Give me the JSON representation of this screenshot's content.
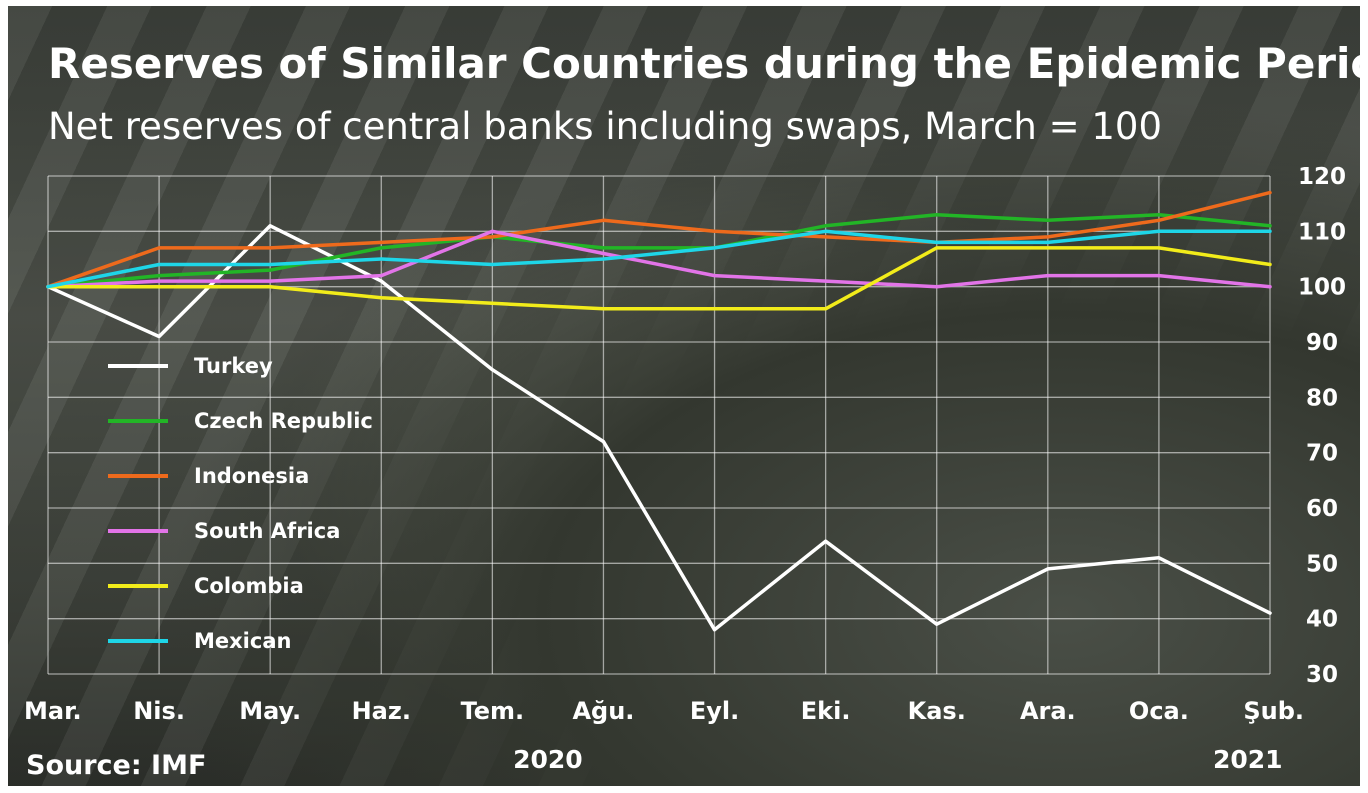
{
  "chart_data": {
    "type": "line",
    "title": "Reserves of Similar Countries during the Epidemic Period",
    "subtitle": "Net reserves of central banks including swaps, March = 100",
    "source": "Source: IMF",
    "categories": [
      "Mar.",
      "Nis.",
      "May.",
      "Haz.",
      "Tem.",
      "Ağu.",
      "Eyl.",
      "Eki.",
      "Kas.",
      "Ara.",
      "Oca.",
      "Şub."
    ],
    "year_labels": [
      {
        "label": "2020",
        "category_index": 4.5
      },
      {
        "label": "2021",
        "category_index": 10.8
      }
    ],
    "ylim": [
      30,
      120
    ],
    "yticks": [
      120,
      110,
      100,
      90,
      80,
      70,
      60,
      50,
      40,
      30
    ],
    "grid": true,
    "legend_position": "left",
    "series": [
      {
        "name": "Turkey",
        "color": "#ffffff",
        "values": [
          100,
          91,
          111,
          101,
          85,
          72,
          38,
          54,
          39,
          49,
          51,
          41
        ]
      },
      {
        "name": "Czech Republic",
        "color": "#22b526",
        "values": [
          100,
          102,
          103,
          107,
          109,
          107,
          107,
          111,
          113,
          112,
          113,
          111
        ]
      },
      {
        "name": "Indonesia",
        "color": "#ee6a1c",
        "values": [
          100,
          107,
          107,
          108,
          109,
          112,
          110,
          109,
          108,
          109,
          112,
          117
        ]
      },
      {
        "name": "South Africa",
        "color": "#e274e8",
        "values": [
          100,
          101,
          101,
          102,
          110,
          106,
          102,
          101,
          100,
          102,
          102,
          100
        ]
      },
      {
        "name": "Colombia",
        "color": "#f2ec1a",
        "values": [
          100,
          100,
          100,
          98,
          97,
          96,
          96,
          96,
          107,
          107,
          107,
          104
        ]
      },
      {
        "name": "Mexican",
        "color": "#1ed6e8",
        "values": [
          100,
          104,
          104,
          105,
          104,
          105,
          107,
          110,
          108,
          108,
          110,
          110
        ]
      }
    ]
  }
}
